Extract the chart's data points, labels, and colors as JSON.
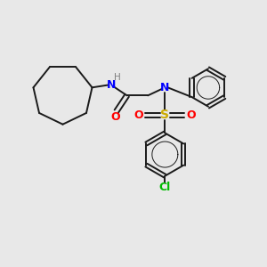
{
  "background_color": "#e8e8e8",
  "bond_color": "#1a1a1a",
  "N_color": "#0000ff",
  "H_color": "#808080",
  "O_color": "#ff0000",
  "S_color": "#ccaa00",
  "Cl_color": "#00bb00",
  "figsize": [
    3.0,
    3.0
  ],
  "dpi": 100,
  "xlim": [
    0,
    10
  ],
  "ylim": [
    0,
    10
  ]
}
